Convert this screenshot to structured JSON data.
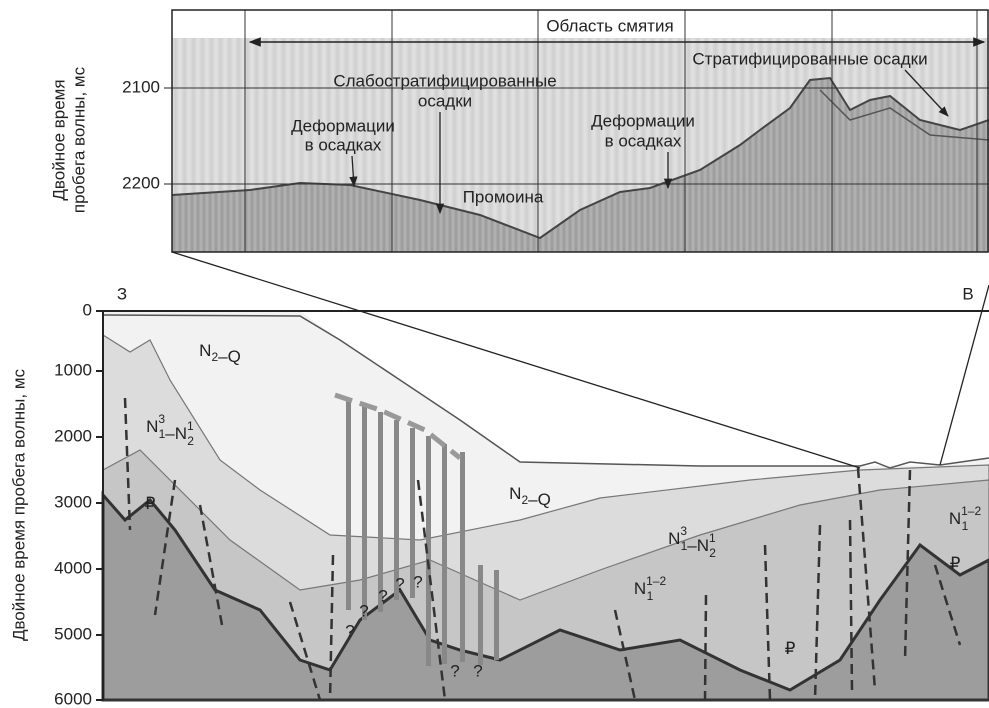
{
  "top_panel": {
    "y_label": [
      "Двойное время",
      "пробега волны, мс"
    ],
    "y_ticks": [
      "2100",
      "2200"
    ],
    "annotations": {
      "zone": "Область смятия",
      "weak": [
        "Слабостратифицированные",
        "осадки"
      ],
      "deform_left": [
        "Деформации",
        "в осадках"
      ],
      "deform_right": [
        "Деформации",
        "в осадках"
      ],
      "washout": "Промоина",
      "strat": "Стратифицированные осадки"
    }
  },
  "bottom_panel": {
    "y_label": "Двойное время пробега волны, мс",
    "y_ticks": [
      "0",
      "1000",
      "2000",
      "3000",
      "4000",
      "5000",
      "6000"
    ],
    "west": "З",
    "east": "В",
    "units": [
      [
        {
          "text": "N"
        },
        {
          "sub": "2"
        },
        {
          "text": "–Q"
        }
      ],
      [
        {
          "text": "N"
        },
        {
          "sub": "2"
        },
        {
          "text": "–Q"
        }
      ],
      [
        {
          "text": "N"
        },
        {
          "sub": "1",
          "sup": "3"
        },
        {
          "text": "–N"
        },
        {
          "sub": "2",
          "sup": "1"
        }
      ],
      [
        {
          "text": "N"
        },
        {
          "sub": "1",
          "sup": "3"
        },
        {
          "text": "–N"
        },
        {
          "sub": "2",
          "sup": "1"
        }
      ],
      [
        {
          "text": "N"
        },
        {
          "sub": "1",
          "sup": "1–2"
        }
      ],
      [
        {
          "text": "N"
        },
        {
          "sub": "1",
          "sup": "1–2"
        }
      ],
      [
        {
          "text": "₽"
        }
      ],
      [
        {
          "text": "₽"
        }
      ],
      [
        {
          "text": "₽"
        }
      ]
    ],
    "question": "?"
  }
}
